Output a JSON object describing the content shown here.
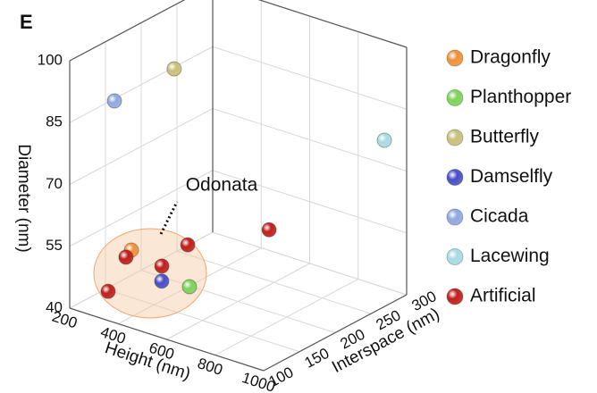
{
  "chart_data": {
    "type": "scatter3d",
    "title": "E",
    "xlabel": "Height (nm)",
    "ylabel": "Interspace (nm)",
    "zlabel": "Diameter (nm)",
    "xlim": [
      200,
      1000
    ],
    "xticks": [
      200,
      400,
      600,
      800,
      1000
    ],
    "ylim": [
      100,
      300
    ],
    "yticks": [
      100,
      150,
      200,
      250,
      300
    ],
    "zlim": [
      40,
      100
    ],
    "zticks": [
      40,
      55,
      70,
      85,
      100
    ],
    "grid": true,
    "legend": "right",
    "annotation": "Odonata",
    "series": [
      {
        "name": "Dragonfly",
        "color": "#f0913a",
        "x": [
          307
        ],
        "y": [
          150
        ],
        "z": [
          51.5
        ]
      },
      {
        "name": "Planthopper",
        "color": "#7dd35a",
        "x": [
          635
        ],
        "y": [
          120
        ],
        "z": [
          51.6
        ]
      },
      {
        "name": "Butterfly",
        "color": "#c9c07a",
        "x": [
          336
        ],
        "y": [
          200
        ],
        "z": [
          91.4
        ]
      },
      {
        "name": "Damselfly",
        "color": "#4a4fc8",
        "x": [
          491
        ],
        "y": [
          130
        ],
        "z": [
          49.3
        ]
      },
      {
        "name": "Cicada",
        "color": "#8fa8e0",
        "x": [
          296
        ],
        "y": [
          130
        ],
        "z": [
          89.3
        ]
      },
      {
        "name": "Lacewing",
        "color": "#a8dce0",
        "x": [
          967
        ],
        "y": [
          280
        ],
        "z": [
          78.7
        ]
      },
      {
        "name": "Artificial",
        "color": "#c0201c",
        "x": [
          329,
          373,
          462,
          510,
          580
        ],
        "y": [
          110,
          120,
          140,
          160,
          250
        ],
        "z": [
          45.6,
          53.8,
          51.5,
          55.7,
          52.4
        ]
      }
    ]
  }
}
